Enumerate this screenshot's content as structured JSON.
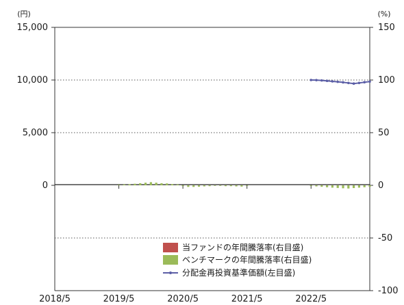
{
  "chart_data": {
    "type": "bar",
    "title": "",
    "left_axis": {
      "unit": "(円)",
      "ylim": [
        -10000,
        15000
      ],
      "ticks": [
        0,
        5000,
        10000,
        15000
      ],
      "tick_labels": [
        "0",
        "5,000",
        "10,000",
        "15,000"
      ]
    },
    "right_axis": {
      "unit": "(%)",
      "ylim": [
        -100,
        150
      ],
      "ticks": [
        -100,
        -50,
        0,
        50,
        100,
        150
      ],
      "tick_labels": [
        "-100",
        "-50",
        "0",
        "50",
        "100",
        "150"
      ]
    },
    "x_axis": {
      "ticks": [
        "2018/5",
        "2019/5",
        "2020/5",
        "2021/5",
        "2022/5"
      ]
    },
    "grid": {
      "horizontal_dotted": true
    },
    "legend": {
      "placement": "bottom-right",
      "entries": [
        {
          "label": "当ファンドの年間騰落率(右目盛)",
          "color": "#c0504d",
          "kind": "bar"
        },
        {
          "label": "ベンチマークの年間騰落率(右目盛)",
          "color": "#9bbb59",
          "kind": "bar"
        },
        {
          "label": "分配金再投資基準価額(左目盛)",
          "color": "#5b5ea6",
          "kind": "line"
        }
      ]
    },
    "benchmark_return_pct": {
      "x": [
        "2019/5",
        "2019/6",
        "2019/7",
        "2019/8",
        "2019/9",
        "2019/10",
        "2019/11",
        "2019/12",
        "2020/1",
        "2020/2",
        "2020/3",
        "2020/4",
        "2020/5",
        "2020/6",
        "2020/7",
        "2020/8",
        "2020/9",
        "2020/10",
        "2020/11",
        "2020/12",
        "2021/1",
        "2021/2",
        "2021/3",
        "2021/4",
        "2021/5",
        "2022/5",
        "2022/6",
        "2022/7",
        "2022/8",
        "2022/9",
        "2022/10",
        "2022/11",
        "2022/12",
        "2023/1",
        "2023/2",
        "2023/3",
        "2023/4"
      ],
      "values": [
        0.5,
        0.8,
        1.0,
        1.5,
        2.0,
        2.5,
        3.0,
        2.5,
        2.0,
        1.8,
        1.2,
        0.8,
        -0.8,
        -1.5,
        -1.5,
        -1.3,
        -1.0,
        -0.8,
        -0.5,
        -0.5,
        -0.8,
        -0.8,
        -1.0,
        -1.2,
        -0.5,
        -0.6,
        -1.0,
        -1.4,
        -1.8,
        -2.2,
        -2.5,
        -2.8,
        -3.0,
        -2.6,
        -2.2,
        -1.8,
        -1.3
      ]
    },
    "nav_yen": {
      "x": [
        "2022/5",
        "2022/6",
        "2022/7",
        "2022/8",
        "2022/9",
        "2022/10",
        "2022/11",
        "2022/12",
        "2023/1",
        "2023/2",
        "2023/3",
        "2023/4"
      ],
      "values": [
        10000,
        9990,
        9960,
        9920,
        9870,
        9830,
        9780,
        9720,
        9660,
        9720,
        9790,
        9850
      ]
    }
  }
}
